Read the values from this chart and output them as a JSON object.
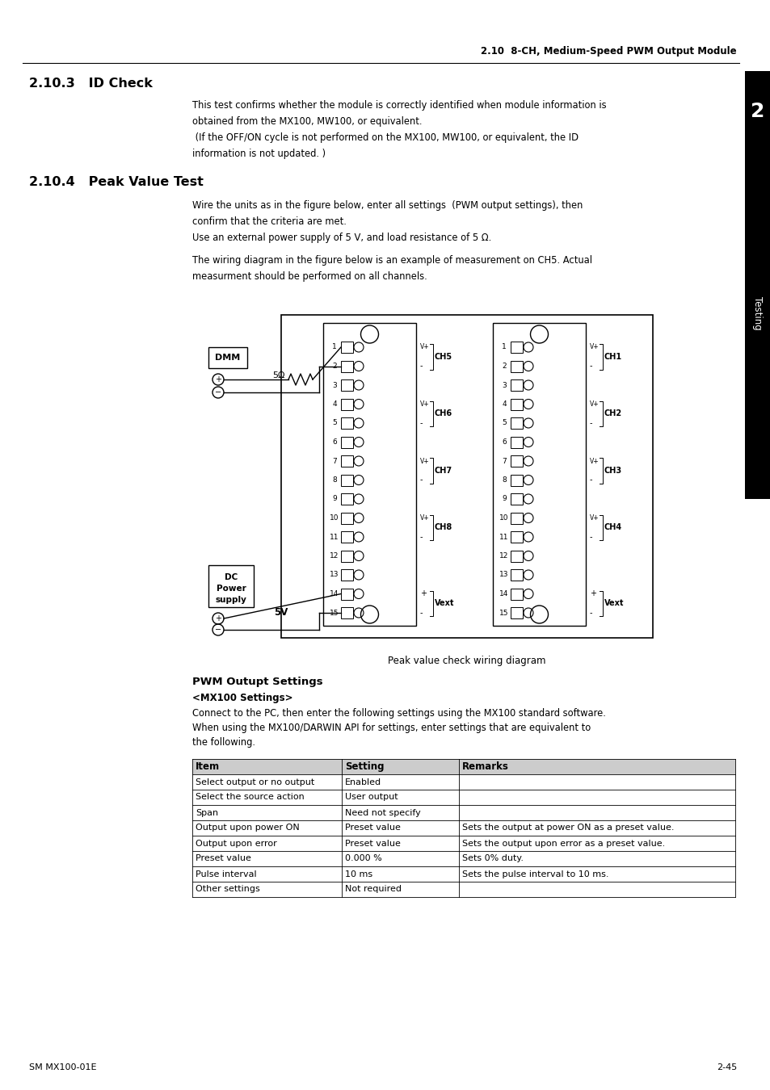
{
  "page_header": "2.10  8-CH, Medium-Speed PWM Output Module",
  "section_2103_title": "2.10.3   ID Check",
  "section_2103_body": [
    "This test confirms whether the module is correctly identified when module information is",
    "obtained from the MX100, MW100, or equivalent.",
    " (If the OFF/ON cycle is not performed on the MX100, MW100, or equivalent, the ID",
    "information is not updated. )"
  ],
  "section_2104_title": "2.10.4   Peak Value Test",
  "section_2104_body": [
    "Wire the units as in the figure below, enter all settings  (PWM output settings), then",
    "confirm that the criteria are met.",
    "Use an external power supply of 5 V, and load resistance of 5 Ω."
  ],
  "section_2104_body2": [
    "The wiring diagram in the figure below is an example of measurement on CH5. Actual",
    "measurment should be performed on all channels."
  ],
  "diagram_caption": "Peak value check wiring diagram",
  "pwm_title": "PWM Outupt Settings",
  "mx100_subtitle": "<MX100 Settings>",
  "mx100_body": [
    "Connect to the PC, then enter the following settings using the MX100 standard software.",
    "When using the MX100/DARWIN API for settings, enter settings that are equivalent to",
    "the following."
  ],
  "table_headers": [
    "Item",
    "Setting",
    "Remarks"
  ],
  "table_rows": [
    [
      "Select output or no output",
      "Enabled",
      ""
    ],
    [
      "Select the source action",
      "User output",
      ""
    ],
    [
      "Span",
      "Need not specify",
      ""
    ],
    [
      "Output upon power ON",
      "Preset value",
      "Sets the output at power ON as a preset value."
    ],
    [
      "Output upon error",
      "Preset value",
      "Sets the output upon error as a preset value."
    ],
    [
      "Preset value",
      "0.000 %",
      "Sets 0% duty."
    ],
    [
      "Pulse interval",
      "10 ms",
      "Sets the pulse interval to 10 ms."
    ],
    [
      "Other settings",
      "Not required",
      ""
    ]
  ],
  "sidebar_text": "Testing",
  "sidebar_number": "2",
  "footer_left": "SM MX100-01E",
  "footer_right": "2-45",
  "bg_color": "#ffffff",
  "text_color": "#000000",
  "sidebar_bg": "#000000",
  "sidebar_text_color": "#ffffff",
  "header_line_color": "#000000",
  "table_border_color": "#000000",
  "table_header_bg": "#cccccc"
}
